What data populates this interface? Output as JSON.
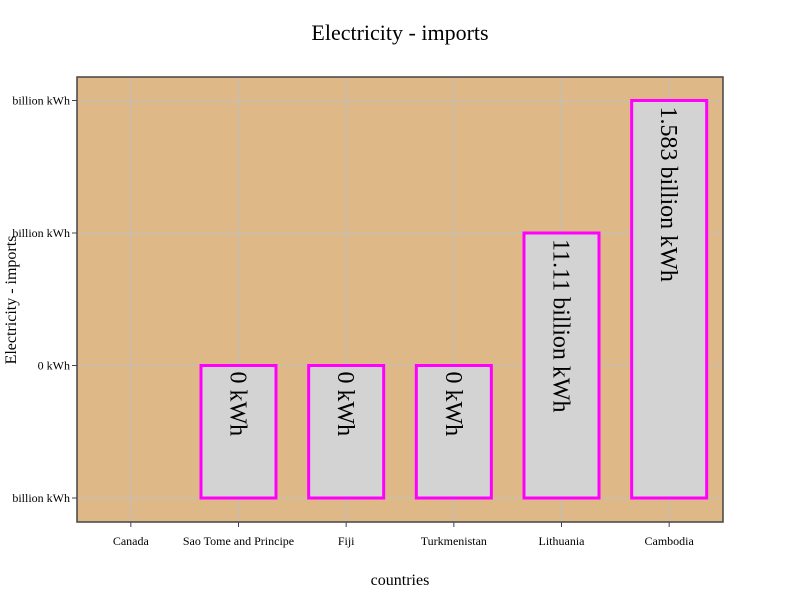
{
  "chart_data": {
    "type": "bar",
    "title": "Electricity - imports",
    "xlabel": "countries",
    "ylabel": "Electricity - imports",
    "categories": [
      "Canada",
      "Sao Tome and Principe",
      "Fiji",
      "Turkmenistan",
      "Lithuania",
      "Cambodia"
    ],
    "series": [
      {
        "rank": [
          0,
          1,
          1,
          1,
          2,
          3
        ],
        "data_labels": [
          "",
          "0 kWh",
          "0 kWh",
          "0 kWh",
          "11.11 billion kWh",
          "1.583 billion kWh"
        ]
      }
    ],
    "y_ticks": [
      "billion kWh",
      "0 kWh",
      "billion kWh",
      "billion kWh"
    ],
    "ylim": [
      0,
      3
    ],
    "grid": true
  },
  "colors": {
    "plot_bg": "#deb887",
    "bar_fill": "#d3d3d3",
    "bar_stroke": "#ff00ff",
    "grid": "#bfbfbf",
    "axis": "#444444"
  }
}
